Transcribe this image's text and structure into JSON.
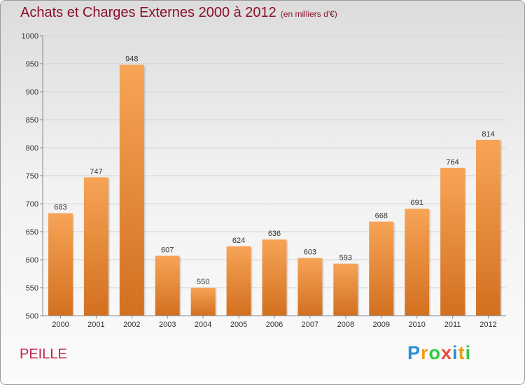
{
  "header": {
    "title": "Achats et Charges Externes 2000 à 2012",
    "unit": "(en milliers d'€)"
  },
  "footer": {
    "commune": "PEILLE",
    "brand": [
      "P",
      "r",
      "o",
      "x",
      "i",
      "t",
      "i"
    ],
    "brand_colors": [
      "#2a8fd6",
      "#f39c12",
      "#2ecc40",
      "#e74c3c",
      "#2a8fd6",
      "#f39c12",
      "#2ecc40"
    ]
  },
  "colors": {
    "bar_top": "#f7a457",
    "bar_bottom": "#d2701f",
    "title": "#8a0f2b",
    "commune": "#c0244a"
  },
  "chart_data": {
    "type": "bar",
    "title": "Achats et Charges Externes 2000 à 2012",
    "categories": [
      "2000",
      "2001",
      "2002",
      "2003",
      "2004",
      "2005",
      "2006",
      "2007",
      "2008",
      "2009",
      "2010",
      "2011",
      "2012"
    ],
    "values": [
      683,
      747,
      948,
      607,
      550,
      624,
      636,
      603,
      593,
      668,
      691,
      764,
      814
    ],
    "ylim": [
      500,
      1000
    ],
    "yticks": [
      500,
      550,
      600,
      650,
      700,
      750,
      800,
      850,
      900,
      950,
      1000
    ],
    "grid": true
  }
}
